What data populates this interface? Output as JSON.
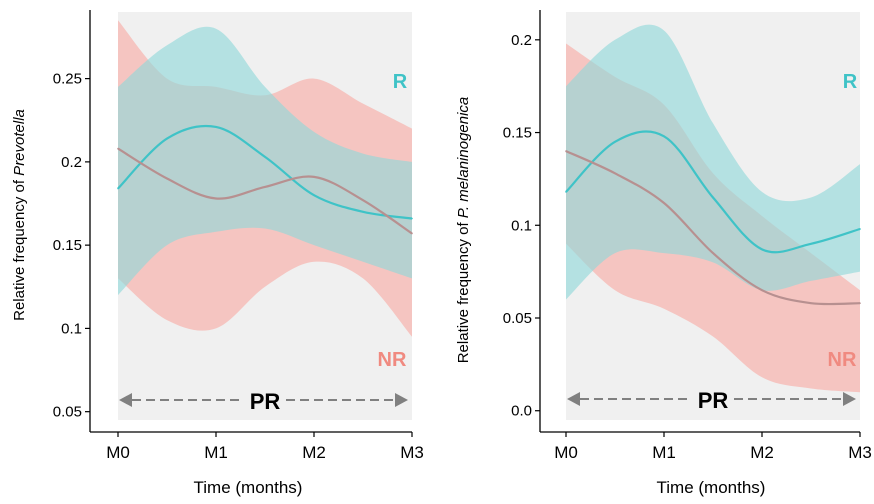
{
  "colors": {
    "panel_bg": "#f0f0f0",
    "r_color": "#3fc3c7",
    "r_band": "#8fd8da",
    "nr_color": "#f08a80",
    "nr_band": "#f6b4ae",
    "overlap_line": "#b79090",
    "arrow": "#808080",
    "axis": "#000000"
  },
  "chart_data": [
    {
      "type": "line",
      "title": "",
      "xlabel": "Time (months)",
      "ylabel_prefix": "Relative frequency of ",
      "ylabel_taxon": "Prevotella",
      "x": [
        0,
        0.5,
        1,
        1.5,
        2,
        2.5,
        3
      ],
      "xtick_labels": [
        "M0",
        "M1",
        "M2",
        "M3"
      ],
      "xlim": [
        0,
        3
      ],
      "ylim": [
        0.045,
        0.29
      ],
      "yticks": [
        0.05,
        0.1,
        0.15,
        0.2,
        0.25
      ],
      "ytick_labels": [
        "0.05",
        "0.1",
        "0.15",
        "0.2",
        "0.25"
      ],
      "annotation": "PR",
      "series": [
        {
          "name": "R",
          "mean": [
            0.184,
            0.214,
            0.221,
            0.203,
            0.18,
            0.17,
            0.166
          ],
          "lower": [
            0.12,
            0.15,
            0.158,
            0.16,
            0.15,
            0.14,
            0.13
          ],
          "upper": [
            0.245,
            0.27,
            0.28,
            0.245,
            0.218,
            0.205,
            0.2
          ]
        },
        {
          "name": "NR",
          "mean": [
            0.208,
            0.19,
            0.178,
            0.185,
            0.191,
            0.177,
            0.157
          ],
          "lower": [
            0.13,
            0.105,
            0.1,
            0.125,
            0.14,
            0.13,
            0.095
          ],
          "upper": [
            0.285,
            0.25,
            0.245,
            0.24,
            0.25,
            0.235,
            0.22
          ]
        }
      ]
    },
    {
      "type": "line",
      "title": "",
      "xlabel": "Time (months)",
      "ylabel_prefix": "Relative frequency of ",
      "ylabel_taxon": "P. melaninogenica",
      "x": [
        0,
        0.5,
        1,
        1.5,
        2,
        2.5,
        3
      ],
      "xtick_labels": [
        "M0",
        "M1",
        "M2",
        "M3"
      ],
      "xlim": [
        0,
        3
      ],
      "ylim": [
        -0.005,
        0.215
      ],
      "yticks": [
        0.0,
        0.05,
        0.1,
        0.15,
        0.2
      ],
      "ytick_labels": [
        "0.0",
        "0.05",
        "0.1",
        "0.15",
        "0.2"
      ],
      "annotation": "PR",
      "series": [
        {
          "name": "R",
          "mean": [
            0.118,
            0.145,
            0.148,
            0.115,
            0.087,
            0.09,
            0.098
          ],
          "lower": [
            0.06,
            0.085,
            0.085,
            0.08,
            0.065,
            0.07,
            0.075
          ],
          "upper": [
            0.175,
            0.2,
            0.205,
            0.155,
            0.118,
            0.115,
            0.133
          ]
        },
        {
          "name": "NR",
          "mean": [
            0.14,
            0.128,
            0.112,
            0.085,
            0.065,
            0.058,
            0.058
          ],
          "lower": [
            0.09,
            0.065,
            0.055,
            0.04,
            0.018,
            0.012,
            0.01
          ],
          "upper": [
            0.198,
            0.18,
            0.165,
            0.128,
            0.105,
            0.085,
            0.065
          ]
        }
      ]
    }
  ]
}
